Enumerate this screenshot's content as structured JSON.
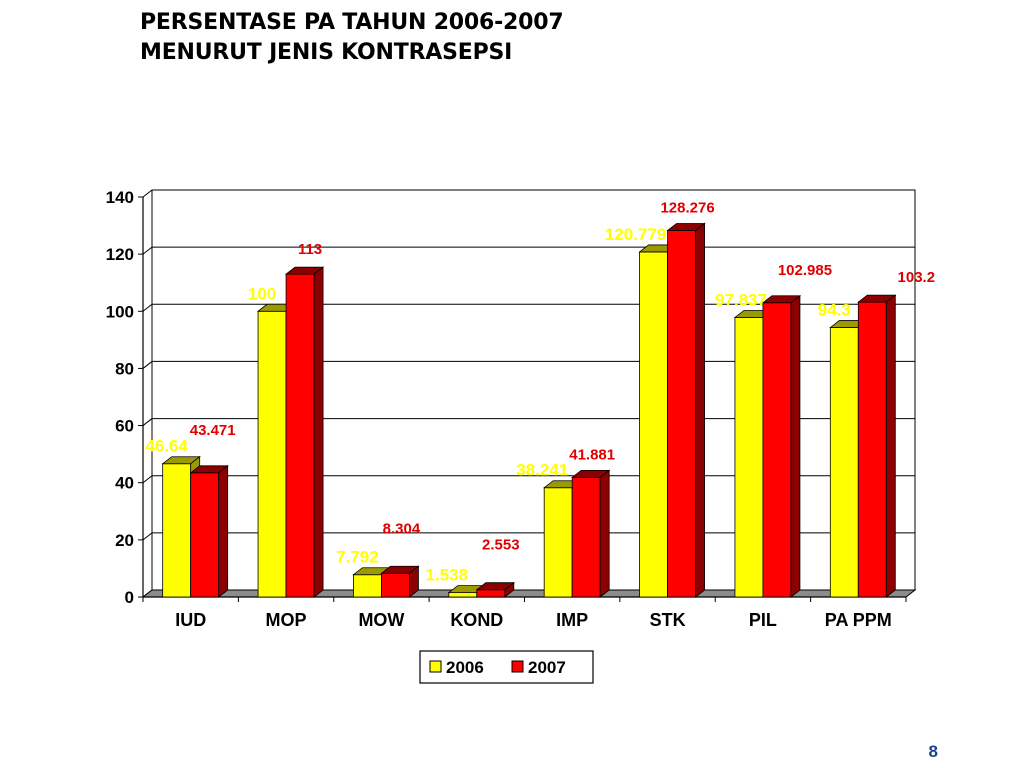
{
  "title": {
    "line1": "PERSENTASE PA TAHUN 2006-2007",
    "line2": "MENURUT JENIS KONTRASEPSI"
  },
  "page_number": "8",
  "colors": {
    "series_2006": "#ffff00",
    "series_2006_dark": "#9b9b00",
    "series_2006_label": "#ffff00",
    "series_2007": "#ff0000",
    "series_2007_dark": "#8b0000",
    "series_2007_label": "#e00000",
    "grid": "#000000",
    "floor": "#8c8c8c"
  },
  "chart_data": {
    "type": "bar",
    "title": "PERSENTASE PA TAHUN 2006-2007 MENURUT JENIS KONTRASEPSI",
    "categories": [
      "IUD",
      "MOP",
      "MOW",
      "KOND",
      "IMP",
      "STK",
      "PIL",
      "PA PPM"
    ],
    "series": [
      {
        "name": "2006",
        "values": [
          46.64,
          100,
          7.792,
          1.538,
          38.241,
          120.779,
          97.837,
          94.3
        ],
        "labels": [
          "46.64",
          "100",
          "7.792",
          "1.538",
          "38.241",
          "120.779",
          "97.837",
          "94.3"
        ]
      },
      {
        "name": "2007",
        "values": [
          43.471,
          113,
          8.304,
          2.553,
          41.881,
          128.276,
          102.985,
          103.2
        ],
        "labels": [
          "43.471",
          "113",
          "8.304",
          "2.553",
          "41.881",
          "128.276",
          "102.985",
          "103.2"
        ]
      }
    ],
    "ylim": [
      0,
      140
    ],
    "yticks": [
      "0",
      "20",
      "40",
      "60",
      "80",
      "100",
      "120",
      "140"
    ],
    "grid": true,
    "legend": "bottom-center",
    "xlabel": "",
    "ylabel": ""
  }
}
